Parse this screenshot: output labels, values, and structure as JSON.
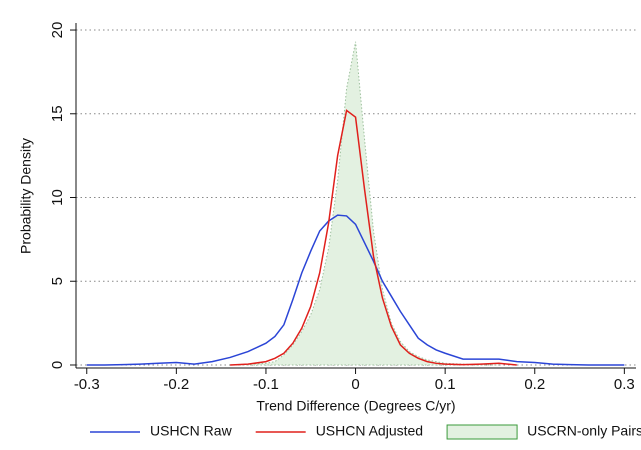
{
  "chart_data": {
    "type": "line",
    "xlabel": "Trend Difference (Degrees C/yr)",
    "ylabel": "Probability Density",
    "x": [
      -0.3,
      -0.28,
      -0.26,
      -0.24,
      -0.22,
      -0.2,
      -0.18,
      -0.16,
      -0.14,
      -0.12,
      -0.1,
      -0.09,
      -0.08,
      -0.07,
      -0.06,
      -0.05,
      -0.04,
      -0.03,
      -0.02,
      -0.01,
      0,
      0.01,
      0.02,
      0.03,
      0.04,
      0.05,
      0.06,
      0.07,
      0.08,
      0.09,
      0.1,
      0.12,
      0.14,
      0.16,
      0.18,
      0.2,
      0.22,
      0.24,
      0.26,
      0.28,
      0.3
    ],
    "series": [
      {
        "name": "USHCN Raw",
        "color": "#2b45d6",
        "values": [
          0,
          0,
          0.02,
          0.05,
          0.1,
          0.15,
          0.05,
          0.2,
          0.45,
          0.8,
          1.3,
          1.7,
          2.4,
          3.9,
          5.5,
          6.8,
          8.0,
          8.6,
          8.95,
          8.9,
          8.4,
          7.3,
          6.2,
          5.0,
          4.1,
          3.2,
          2.4,
          1.6,
          1.2,
          0.9,
          0.7,
          0.35,
          0.35,
          0.35,
          0.2,
          0.15,
          0.05,
          0.02,
          0,
          0,
          0
        ]
      },
      {
        "name": "USHCN Adjusted",
        "color": "#e0201c",
        "values": [
          null,
          null,
          null,
          null,
          null,
          null,
          null,
          null,
          0,
          0.05,
          0.2,
          0.4,
          0.7,
          1.3,
          2.2,
          3.5,
          5.5,
          8.5,
          12.5,
          15.2,
          14.8,
          10.5,
          6.5,
          4.0,
          2.3,
          1.2,
          0.7,
          0.4,
          0.2,
          0.1,
          0.05,
          0.02,
          0.05,
          0.1,
          0,
          null,
          null,
          null,
          null,
          null,
          null
        ]
      },
      {
        "name": "USCRN-only Pairs",
        "color": "#e3f1e1",
        "type": "area",
        "values": [
          null,
          null,
          null,
          null,
          null,
          null,
          null,
          null,
          0,
          0.05,
          0.1,
          0.2,
          0.6,
          1.2,
          2.0,
          3.0,
          4.5,
          7.0,
          11.0,
          16.5,
          19.3,
          13.5,
          8.0,
          4.5,
          2.5,
          1.4,
          0.8,
          0.5,
          0.3,
          0.2,
          0.1,
          0.05,
          0,
          0,
          null,
          null,
          null,
          null,
          null,
          null,
          null
        ]
      }
    ],
    "xlim": [
      -0.312,
      0.313
    ],
    "ylim": [
      -0.18,
      20.42
    ],
    "xticks": [
      -0.3,
      -0.2,
      -0.1,
      0,
      0.1,
      0.2,
      0.3
    ],
    "yticks": [
      0,
      5,
      10,
      15,
      20
    ],
    "grid": true,
    "legend": "bottom"
  }
}
